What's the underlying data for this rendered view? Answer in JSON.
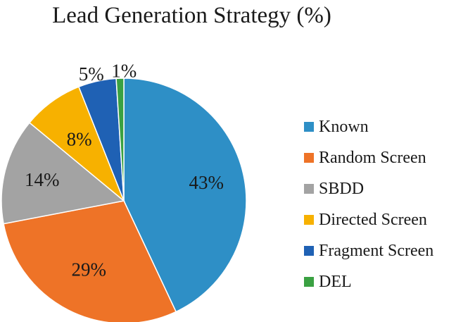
{
  "chart_data": {
    "type": "pie",
    "title": "Lead Generation Strategy (%)",
    "categories": [
      "Known",
      "Random Screen",
      "SBDD",
      "Directed Screen",
      "Fragment Screen",
      "DEL"
    ],
    "values": [
      43,
      29,
      14,
      8,
      5,
      1
    ],
    "labels": [
      "43%",
      "29%",
      "14%",
      "8%",
      "5%",
      "1%"
    ],
    "colors": [
      "#2e8fc6",
      "#ee7327",
      "#a3a3a3",
      "#f7b100",
      "#1f61b4",
      "#3aa142"
    ],
    "start": "12 o'clock",
    "direction": "clockwise",
    "legend": "right"
  }
}
